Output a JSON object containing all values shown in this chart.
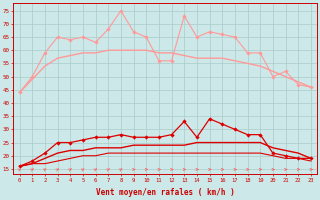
{
  "hours": [
    0,
    1,
    2,
    3,
    4,
    5,
    6,
    7,
    8,
    9,
    10,
    11,
    12,
    13,
    14,
    15,
    16,
    17,
    18,
    19,
    20,
    21,
    22,
    23
  ],
  "line_rafales_jagged": [
    44,
    50,
    59,
    65,
    64,
    65,
    63,
    68,
    75,
    67,
    65,
    56,
    56,
    73,
    65,
    67,
    66,
    65,
    59,
    59,
    50,
    52,
    47,
    46
  ],
  "line_rafales_smooth": [
    44,
    49,
    54,
    57,
    58,
    59,
    59,
    60,
    60,
    60,
    60,
    59,
    59,
    58,
    57,
    57,
    57,
    56,
    55,
    54,
    52,
    50,
    48,
    46
  ],
  "line_vent_jagged": [
    16,
    18,
    21,
    25,
    25,
    26,
    27,
    27,
    28,
    27,
    27,
    27,
    28,
    33,
    27,
    34,
    32,
    30,
    28,
    28,
    21,
    20,
    19,
    19
  ],
  "line_vent_smooth": [
    16,
    17,
    19,
    21,
    22,
    22,
    23,
    23,
    23,
    24,
    24,
    24,
    24,
    24,
    25,
    25,
    25,
    25,
    25,
    25,
    23,
    22,
    21,
    19
  ],
  "line_vent_lower": [
    16,
    17,
    17,
    18,
    19,
    20,
    20,
    21,
    21,
    21,
    21,
    21,
    21,
    21,
    21,
    21,
    21,
    21,
    21,
    21,
    20,
    19,
    19,
    18
  ],
  "bg_color": "#cde8e8",
  "grid_color": "#aacccc",
  "line_color_light": "#ff9999",
  "line_color_mid": "#ff6666",
  "line_color_dark": "#dd0000",
  "arrow_color": "#ff6666",
  "xlabel": "Vent moyen/en rafales ( km/h )",
  "yticks": [
    15,
    20,
    25,
    30,
    35,
    40,
    45,
    50,
    55,
    60,
    65,
    70,
    75
  ],
  "ylim": [
    13,
    78
  ],
  "xlim": [
    -0.5,
    23.5
  ],
  "arrow_angles_diagonal": [
    0,
    1,
    2,
    3,
    4,
    5,
    6,
    7,
    8
  ],
  "arrow_angles_horizontal": [
    9,
    10,
    11,
    12,
    13,
    14,
    15,
    16,
    17,
    18,
    19,
    20,
    21,
    22,
    23
  ]
}
